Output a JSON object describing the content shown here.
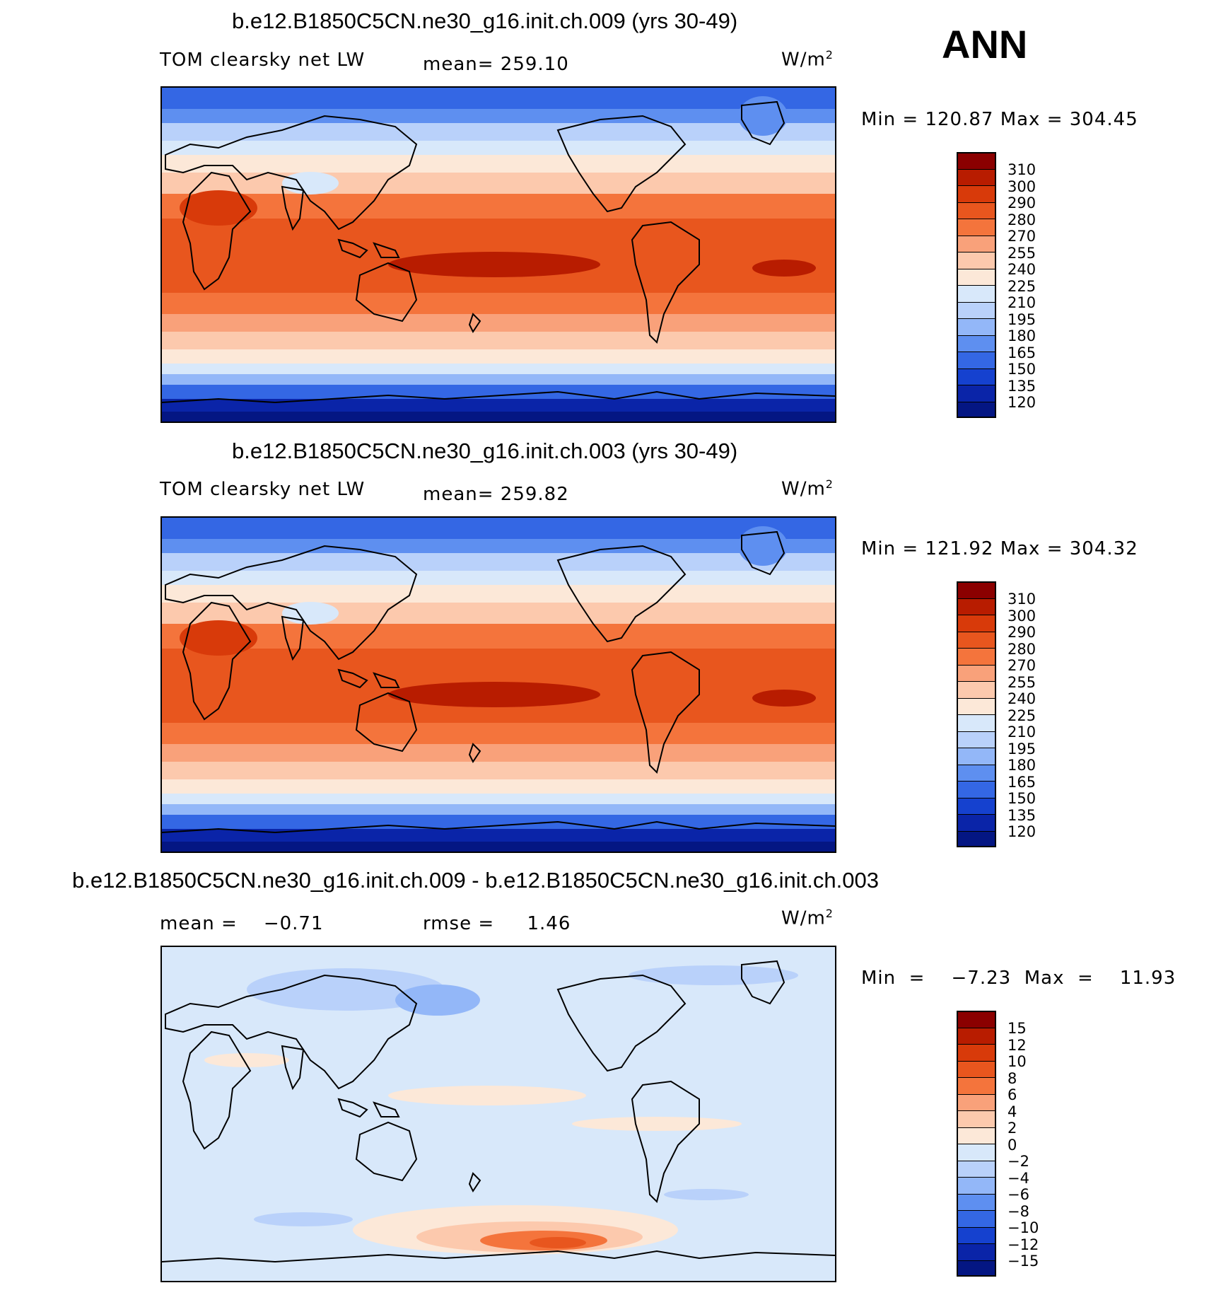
{
  "season": "ANN",
  "units": "W/m",
  "units_sup": "2",
  "panels": [
    {
      "title": "b.e12.B1850C5CN.ne30_g16.init.ch.009 (yrs 30-49)",
      "variable": "TOM clearsky net LW",
      "mean_text": "mean= 259.10",
      "minmax_text": "Min  =  120.87  Max  =  304.45"
    },
    {
      "title": "b.e12.B1850C5CN.ne30_g16.init.ch.003 (yrs 30-49)",
      "variable": "TOM clearsky net LW",
      "mean_text": "mean= 259.82",
      "minmax_text": "Min  =  121.92  Max  =  304.32"
    },
    {
      "title": "b.e12.B1850C5CN.ne30_g16.init.ch.009 - b.e12.B1850C5CN.ne30_g16.init.ch.003",
      "mean_text": "mean =    −0.71",
      "rmse_text": "rmse =     1.46",
      "minmax_text": "Min  =    −7.23  Max  =    11.93"
    }
  ],
  "chart_data": [
    {
      "type": "heatmap",
      "title": "b.e12.B1850C5CN.ne30_g16.init.ch.009 (yrs 30-49)",
      "variable": "TOM clearsky net LW",
      "units": "W/m2",
      "mean": 259.1,
      "min": 120.87,
      "max": 304.45,
      "levels": [
        "310",
        "300",
        "290",
        "280",
        "270",
        "255",
        "240",
        "225",
        "210",
        "195",
        "180",
        "165",
        "150",
        "135",
        "120"
      ],
      "colors": [
        "#8b0000",
        "#b81c00",
        "#d83a0a",
        "#e8561e",
        "#f4743c",
        "#f9a17a",
        "#fcc9ad",
        "#fce8d8",
        "#d8e8fa",
        "#b9d1fa",
        "#93b7f8",
        "#5e8ff0",
        "#3467e4",
        "#1541cf",
        "#0a24a8",
        "#041683"
      ]
    },
    {
      "type": "heatmap",
      "title": "b.e12.B1850C5CN.ne30_g16.init.ch.003 (yrs 30-49)",
      "variable": "TOM clearsky net LW",
      "units": "W/m2",
      "mean": 259.82,
      "min": 121.92,
      "max": 304.32,
      "levels": [
        "310",
        "300",
        "290",
        "280",
        "270",
        "255",
        "240",
        "225",
        "210",
        "195",
        "180",
        "165",
        "150",
        "135",
        "120"
      ],
      "colors": [
        "#8b0000",
        "#b81c00",
        "#d83a0a",
        "#e8561e",
        "#f4743c",
        "#f9a17a",
        "#fcc9ad",
        "#fce8d8",
        "#d8e8fa",
        "#b9d1fa",
        "#93b7f8",
        "#5e8ff0",
        "#3467e4",
        "#1541cf",
        "#0a24a8",
        "#041683"
      ]
    },
    {
      "type": "heatmap",
      "title": "b.e12.B1850C5CN.ne30_g16.init.ch.009 - b.e12.B1850C5CN.ne30_g16.init.ch.003",
      "units": "W/m2",
      "mean": -0.71,
      "rmse": 1.46,
      "min": -7.23,
      "max": 11.93,
      "levels": [
        "15",
        "12",
        "10",
        "8",
        "6",
        "4",
        "2",
        "0",
        "−2",
        "−4",
        "−6",
        "−8",
        "−10",
        "−12",
        "−15"
      ],
      "colors": [
        "#8b0000",
        "#b81c00",
        "#d83a0a",
        "#e8561e",
        "#f4743c",
        "#f9a17a",
        "#fcc9ad",
        "#fce8d8",
        "#d8e8fa",
        "#b9d1fa",
        "#93b7f8",
        "#5e8ff0",
        "#3467e4",
        "#1541cf",
        "#0a24a8",
        "#041683"
      ]
    }
  ]
}
